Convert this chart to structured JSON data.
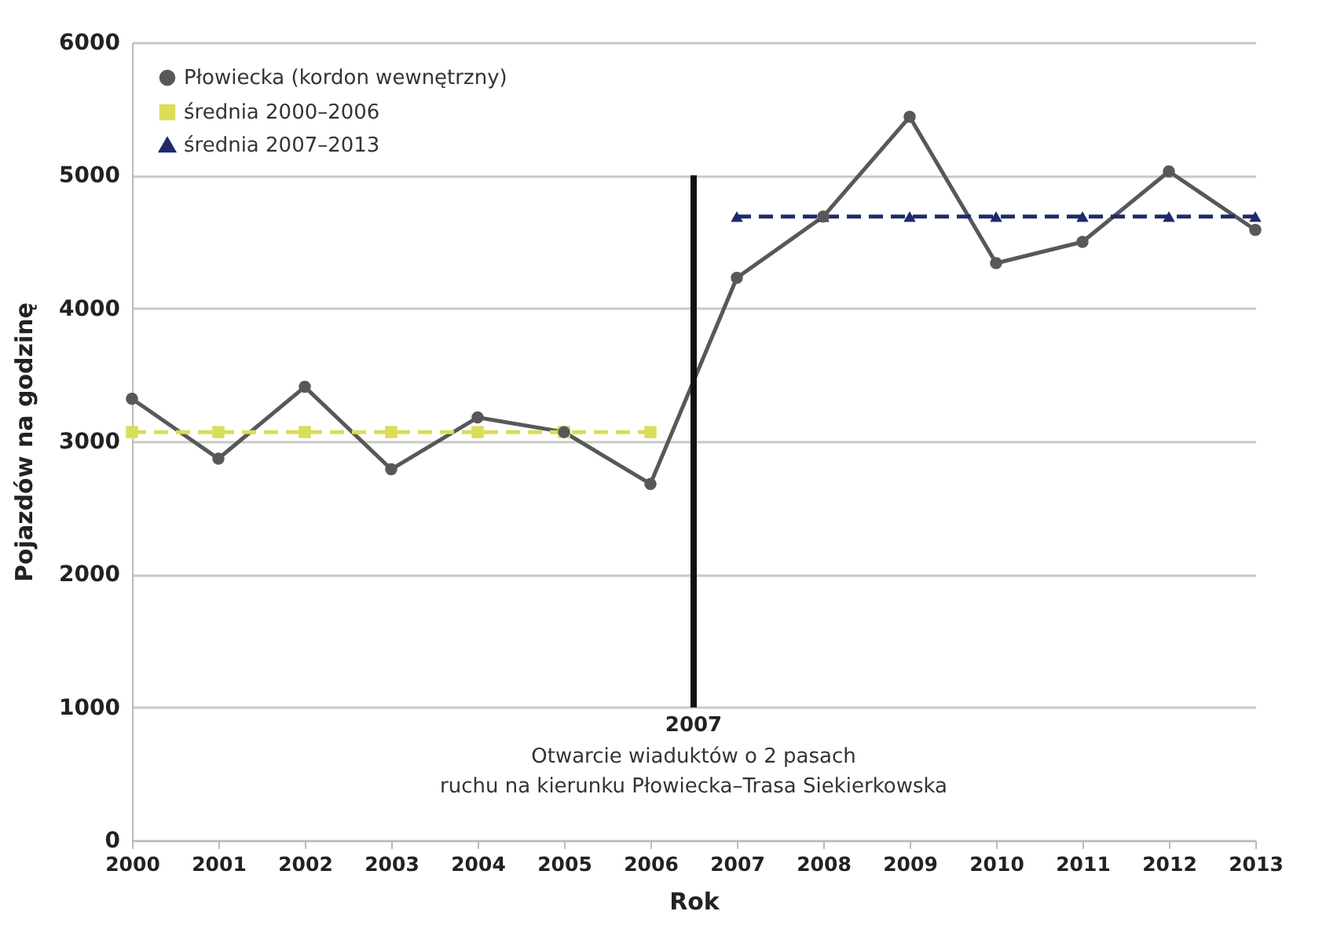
{
  "chart_data": {
    "type": "line",
    "xlabel": "Rok",
    "ylabel": "Pojazdów na godzinę",
    "x": [
      2000,
      2001,
      2002,
      2003,
      2004,
      2005,
      2006,
      2007,
      2008,
      2009,
      2010,
      2011,
      2012,
      2013
    ],
    "series": [
      {
        "name": "Płowiecka (kordon wewnętrzny)",
        "color": "#58585a",
        "marker": "circle",
        "line_style": "solid",
        "values": [
          3320,
          2870,
          3410,
          2790,
          3180,
          3070,
          2680,
          4230,
          4690,
          5440,
          4340,
          4500,
          5030,
          4590
        ]
      },
      {
        "name": "średnia 2000–2006",
        "color": "#dcdc5a",
        "marker": "square",
        "line_style": "dashed",
        "x": [
          2000,
          2001,
          2002,
          2003,
          2004,
          2005,
          2006
        ],
        "values": [
          3070,
          3070,
          3070,
          3070,
          3070,
          3070,
          3070
        ]
      },
      {
        "name": "średnia 2007–2013",
        "color": "#1f2a6b",
        "marker": "triangle",
        "line_style": "dashed",
        "x": [
          2007,
          2008,
          2009,
          2010,
          2011,
          2012,
          2013
        ],
        "values": [
          4690,
          4690,
          4690,
          4690,
          4690,
          4690,
          4690
        ]
      }
    ],
    "xlim": [
      2000,
      2013
    ],
    "xticks": [
      2000,
      2001,
      2002,
      2003,
      2004,
      2005,
      2006,
      2007,
      2008,
      2009,
      2010,
      2011,
      2012,
      2013
    ],
    "ylim": [
      0,
      6000
    ],
    "yticks": [
      0,
      1000,
      2000,
      3000,
      4000,
      5000,
      6000
    ],
    "grid": "y",
    "legend": "top left",
    "ref_lines": [
      {
        "axis": "x",
        "value": 2006.5,
        "label": "2007",
        "color": "#111111"
      }
    ],
    "annotations": [
      {
        "text": "Otwarcie wiaduktów o 2 pasach\nruchu na kierunku Płowiecka–Trasa Siekierkowska",
        "x": 2006.5,
        "y": 1000
      }
    ]
  }
}
